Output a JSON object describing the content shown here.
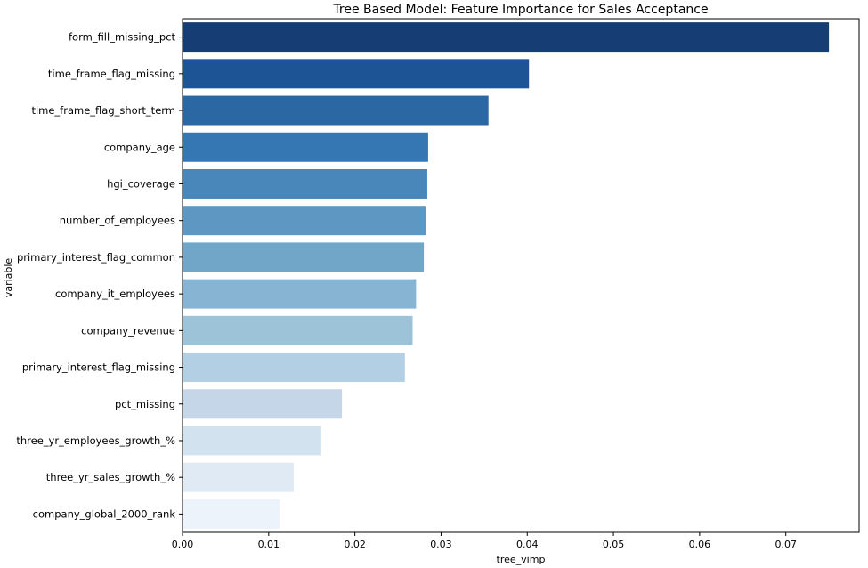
{
  "chart_data": {
    "type": "bar",
    "orientation": "horizontal",
    "title": "Tree Based Model: Feature Importance for Sales Acceptance",
    "xlabel": "tree_vimp",
    "ylabel": "variable",
    "xlim": [
      0,
      0.0785
    ],
    "xticks": [
      0.0,
      0.01,
      0.02,
      0.03,
      0.04,
      0.05,
      0.06,
      0.07
    ],
    "xtick_labels": [
      "0.00",
      "0.01",
      "0.02",
      "0.03",
      "0.04",
      "0.05",
      "0.06",
      "0.07"
    ],
    "grid": false,
    "palette": "Blues_r",
    "categories": [
      "form_fill_missing_pct",
      "time_frame_flag_missing",
      "time_frame_flag_short_term",
      "company_age",
      "hgi_coverage",
      "number_of_employees",
      "primary_interest_flag_common",
      "company_it_employees",
      "company_revenue",
      "primary_interest_flag_missing",
      "pct_missing",
      "three_yr_employees_growth_%",
      "three_yr_sales_growth_%",
      "company_global_2000_rank"
    ],
    "values": [
      0.075,
      0.0402,
      0.0355,
      0.0285,
      0.0284,
      0.0282,
      0.028,
      0.0271,
      0.0267,
      0.0258,
      0.0185,
      0.0161,
      0.0129,
      0.0113
    ],
    "colors": [
      "#173e74",
      "#1c5496",
      "#2b67a3",
      "#3477b3",
      "#4986b9",
      "#5e98c2",
      "#71a6c9",
      "#86b4d2",
      "#9dc3d8",
      "#b3cfe4",
      "#c4d6e7",
      "#d3e2ef",
      "#e0eaf4",
      "#edf3fb"
    ]
  }
}
